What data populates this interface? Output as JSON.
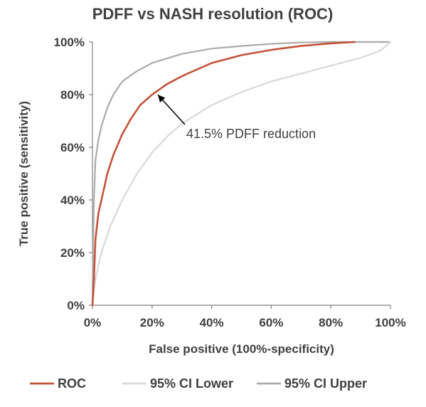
{
  "chart_data": {
    "type": "line",
    "title": "PDFF vs NASH resolution (ROC)",
    "xlabel": "False positive (100%-specificity)",
    "ylabel": "True positive (sensitivity)",
    "xlim": [
      0,
      100
    ],
    "ylim": [
      0,
      100
    ],
    "x_ticks": [
      "0%",
      "20%",
      "40%",
      "60%",
      "80%",
      "100%"
    ],
    "y_ticks": [
      "0%",
      "20%",
      "40%",
      "60%",
      "80%",
      "100%"
    ],
    "grid": false,
    "legend_position": "bottom",
    "series": [
      {
        "name": "ROC",
        "color": "#C5523A",
        "points": [
          [
            0,
            0
          ],
          [
            0.5,
            10
          ],
          [
            1,
            25
          ],
          [
            2,
            35
          ],
          [
            3,
            40
          ],
          [
            4,
            45
          ],
          [
            5,
            50
          ],
          [
            7,
            57
          ],
          [
            10,
            65
          ],
          [
            13,
            71
          ],
          [
            16,
            76
          ],
          [
            20,
            80
          ],
          [
            25,
            84
          ],
          [
            30,
            87
          ],
          [
            40,
            92
          ],
          [
            50,
            95
          ],
          [
            60,
            97
          ],
          [
            70,
            98.5
          ],
          [
            80,
            99.5
          ],
          [
            88,
            100
          ]
        ]
      },
      {
        "name": "95% CI Lower",
        "color": "#D9D9D9",
        "points": [
          [
            0,
            0
          ],
          [
            1,
            10
          ],
          [
            3,
            20
          ],
          [
            6,
            30
          ],
          [
            10,
            40
          ],
          [
            15,
            50
          ],
          [
            20,
            58
          ],
          [
            25,
            64
          ],
          [
            30,
            69
          ],
          [
            40,
            76
          ],
          [
            50,
            81
          ],
          [
            60,
            85
          ],
          [
            70,
            88
          ],
          [
            80,
            91
          ],
          [
            90,
            94
          ],
          [
            95,
            96
          ],
          [
            97,
            97
          ],
          [
            100,
            100
          ]
        ]
      },
      {
        "name": "95% CI Upper",
        "color": "#ABABAB",
        "points": [
          [
            0,
            0
          ],
          [
            0.2,
            20
          ],
          [
            0.5,
            40
          ],
          [
            1,
            55
          ],
          [
            2,
            63
          ],
          [
            3,
            68
          ],
          [
            5,
            75
          ],
          [
            7,
            80
          ],
          [
            10,
            85
          ],
          [
            15,
            89
          ],
          [
            20,
            92
          ],
          [
            30,
            95.5
          ],
          [
            40,
            97.5
          ],
          [
            50,
            98.5
          ],
          [
            60,
            99.3
          ],
          [
            70,
            99.8
          ],
          [
            80,
            100
          ],
          [
            100,
            100
          ]
        ]
      }
    ],
    "annotations": [
      {
        "text": "41.5% PDFF reduction",
        "x": 21,
        "y": 81
      }
    ]
  }
}
